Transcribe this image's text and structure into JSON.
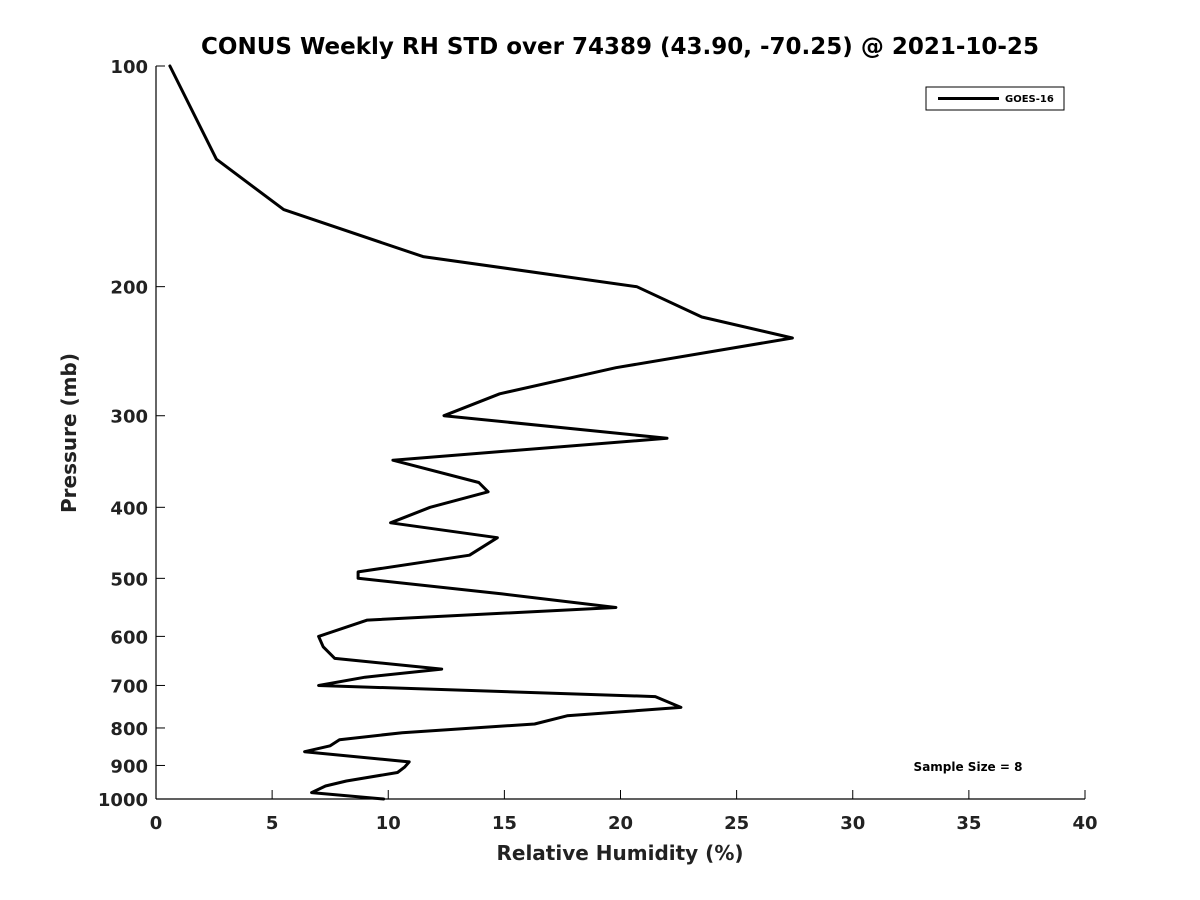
{
  "chart_data": {
    "type": "line",
    "title": "CONUS Weekly RH STD over 74389 (43.90, -70.25) @ 2021-10-25",
    "xlabel": "Relative Humidity (%)",
    "ylabel": "Pressure (mb)",
    "xlim": [
      0,
      40
    ],
    "ylim": [
      100,
      1000
    ],
    "y_scale": "log",
    "y_reversed": true,
    "x_ticks": [
      0,
      5,
      10,
      15,
      20,
      25,
      30,
      35,
      40
    ],
    "y_ticks": [
      100,
      200,
      300,
      400,
      500,
      600,
      700,
      800,
      900,
      1000
    ],
    "grid": false,
    "legend_position": "top-right",
    "annotation": "Sample Size = 8",
    "series": [
      {
        "name": "GOES-16",
        "color": "#000000",
        "points": [
          [
            0.6,
            100
          ],
          [
            2.6,
            134
          ],
          [
            5.5,
            157
          ],
          [
            11.5,
            182
          ],
          [
            20.7,
            200
          ],
          [
            23.5,
            220
          ],
          [
            27.4,
            235
          ],
          [
            19.8,
            258
          ],
          [
            14.8,
            280
          ],
          [
            12.4,
            300
          ],
          [
            22.0,
            322
          ],
          [
            10.2,
            345
          ],
          [
            13.9,
            370
          ],
          [
            14.3,
            381
          ],
          [
            11.8,
            400
          ],
          [
            10.1,
            420
          ],
          [
            14.7,
            440
          ],
          [
            13.5,
            465
          ],
          [
            8.7,
            490
          ],
          [
            8.7,
            500
          ],
          [
            14.9,
            525
          ],
          [
            19.8,
            548
          ],
          [
            9.1,
            570
          ],
          [
            7.0,
            600
          ],
          [
            7.2,
            620
          ],
          [
            7.7,
            643
          ],
          [
            12.3,
            665
          ],
          [
            9.0,
            682
          ],
          [
            7.0,
            700
          ],
          [
            21.5,
            725
          ],
          [
            22.6,
            750
          ],
          [
            17.7,
            770
          ],
          [
            16.3,
            790
          ],
          [
            10.6,
            812
          ],
          [
            7.9,
            830
          ],
          [
            7.5,
            846
          ],
          [
            6.4,
            862
          ],
          [
            10.9,
            890
          ],
          [
            10.7,
            905
          ],
          [
            10.4,
            920
          ],
          [
            8.2,
            945
          ],
          [
            7.3,
            960
          ],
          [
            6.7,
            980
          ],
          [
            9.8,
            1000
          ]
        ]
      }
    ]
  }
}
